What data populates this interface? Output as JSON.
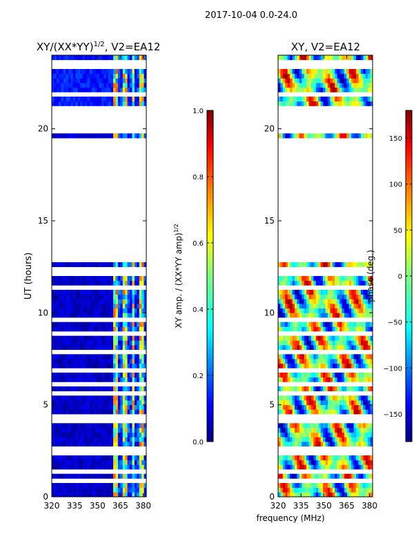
{
  "suptitle": "2017-10-04 0.0-24.0",
  "xlabel_common": "frequency (MHz)",
  "colors": {
    "jet": [
      "#00007f",
      "#0000ff",
      "#007fff",
      "#00ffff",
      "#7fff7f",
      "#ffff00",
      "#ff7f00",
      "#ff0000",
      "#7f0000"
    ],
    "axis": "#000000",
    "background": "#ffffff"
  },
  "chart_data": [
    {
      "type": "heatmap",
      "title_main": "XY/(XX*YY)",
      "title_exp": "1/2",
      "title_suffix": ", V2=EA12",
      "xlabel": "",
      "ylabel": "UT (hours)",
      "xlim": [
        320,
        382
      ],
      "ylim": [
        0,
        24
      ],
      "xticks": [
        320,
        335,
        350,
        365,
        380
      ],
      "yticks": [
        0,
        5,
        10,
        15,
        20
      ],
      "data_gaps_hours": [
        [
          12.75,
          19.4
        ],
        [
          19.7,
          21.15
        ]
      ],
      "bright_band_mhz": [
        360,
        382
      ],
      "colorbar": {
        "label_main": "XY amp. / (XX*YY amp)",
        "label_exp": "1/2",
        "range": [
          0.0,
          1.0
        ],
        "ticks": [
          "0.0",
          "0.2",
          "0.4",
          "0.6",
          "0.8",
          "1.0"
        ],
        "tick_values": [
          0.0,
          0.2,
          0.4,
          0.6,
          0.8,
          1.0
        ]
      }
    },
    {
      "type": "heatmap",
      "title": "XY, V2=EA12",
      "xlabel": "frequency (MHz)",
      "ylabel": "",
      "xlim": [
        320,
        382
      ],
      "ylim": [
        0,
        24
      ],
      "xticks": [
        320,
        335,
        350,
        365,
        380
      ],
      "yticks": [
        0,
        5,
        10,
        15,
        20
      ],
      "data_gaps_hours": [
        [
          12.75,
          19.4
        ],
        [
          19.7,
          21.15
        ]
      ],
      "colorbar": {
        "label": "phase (deg.)",
        "range": [
          -180,
          180
        ],
        "ticks": [
          "−150",
          "−100",
          "−50",
          "0",
          "50",
          "100",
          "150"
        ],
        "tick_values": [
          -150,
          -100,
          -50,
          0,
          50,
          100,
          150
        ]
      }
    }
  ]
}
